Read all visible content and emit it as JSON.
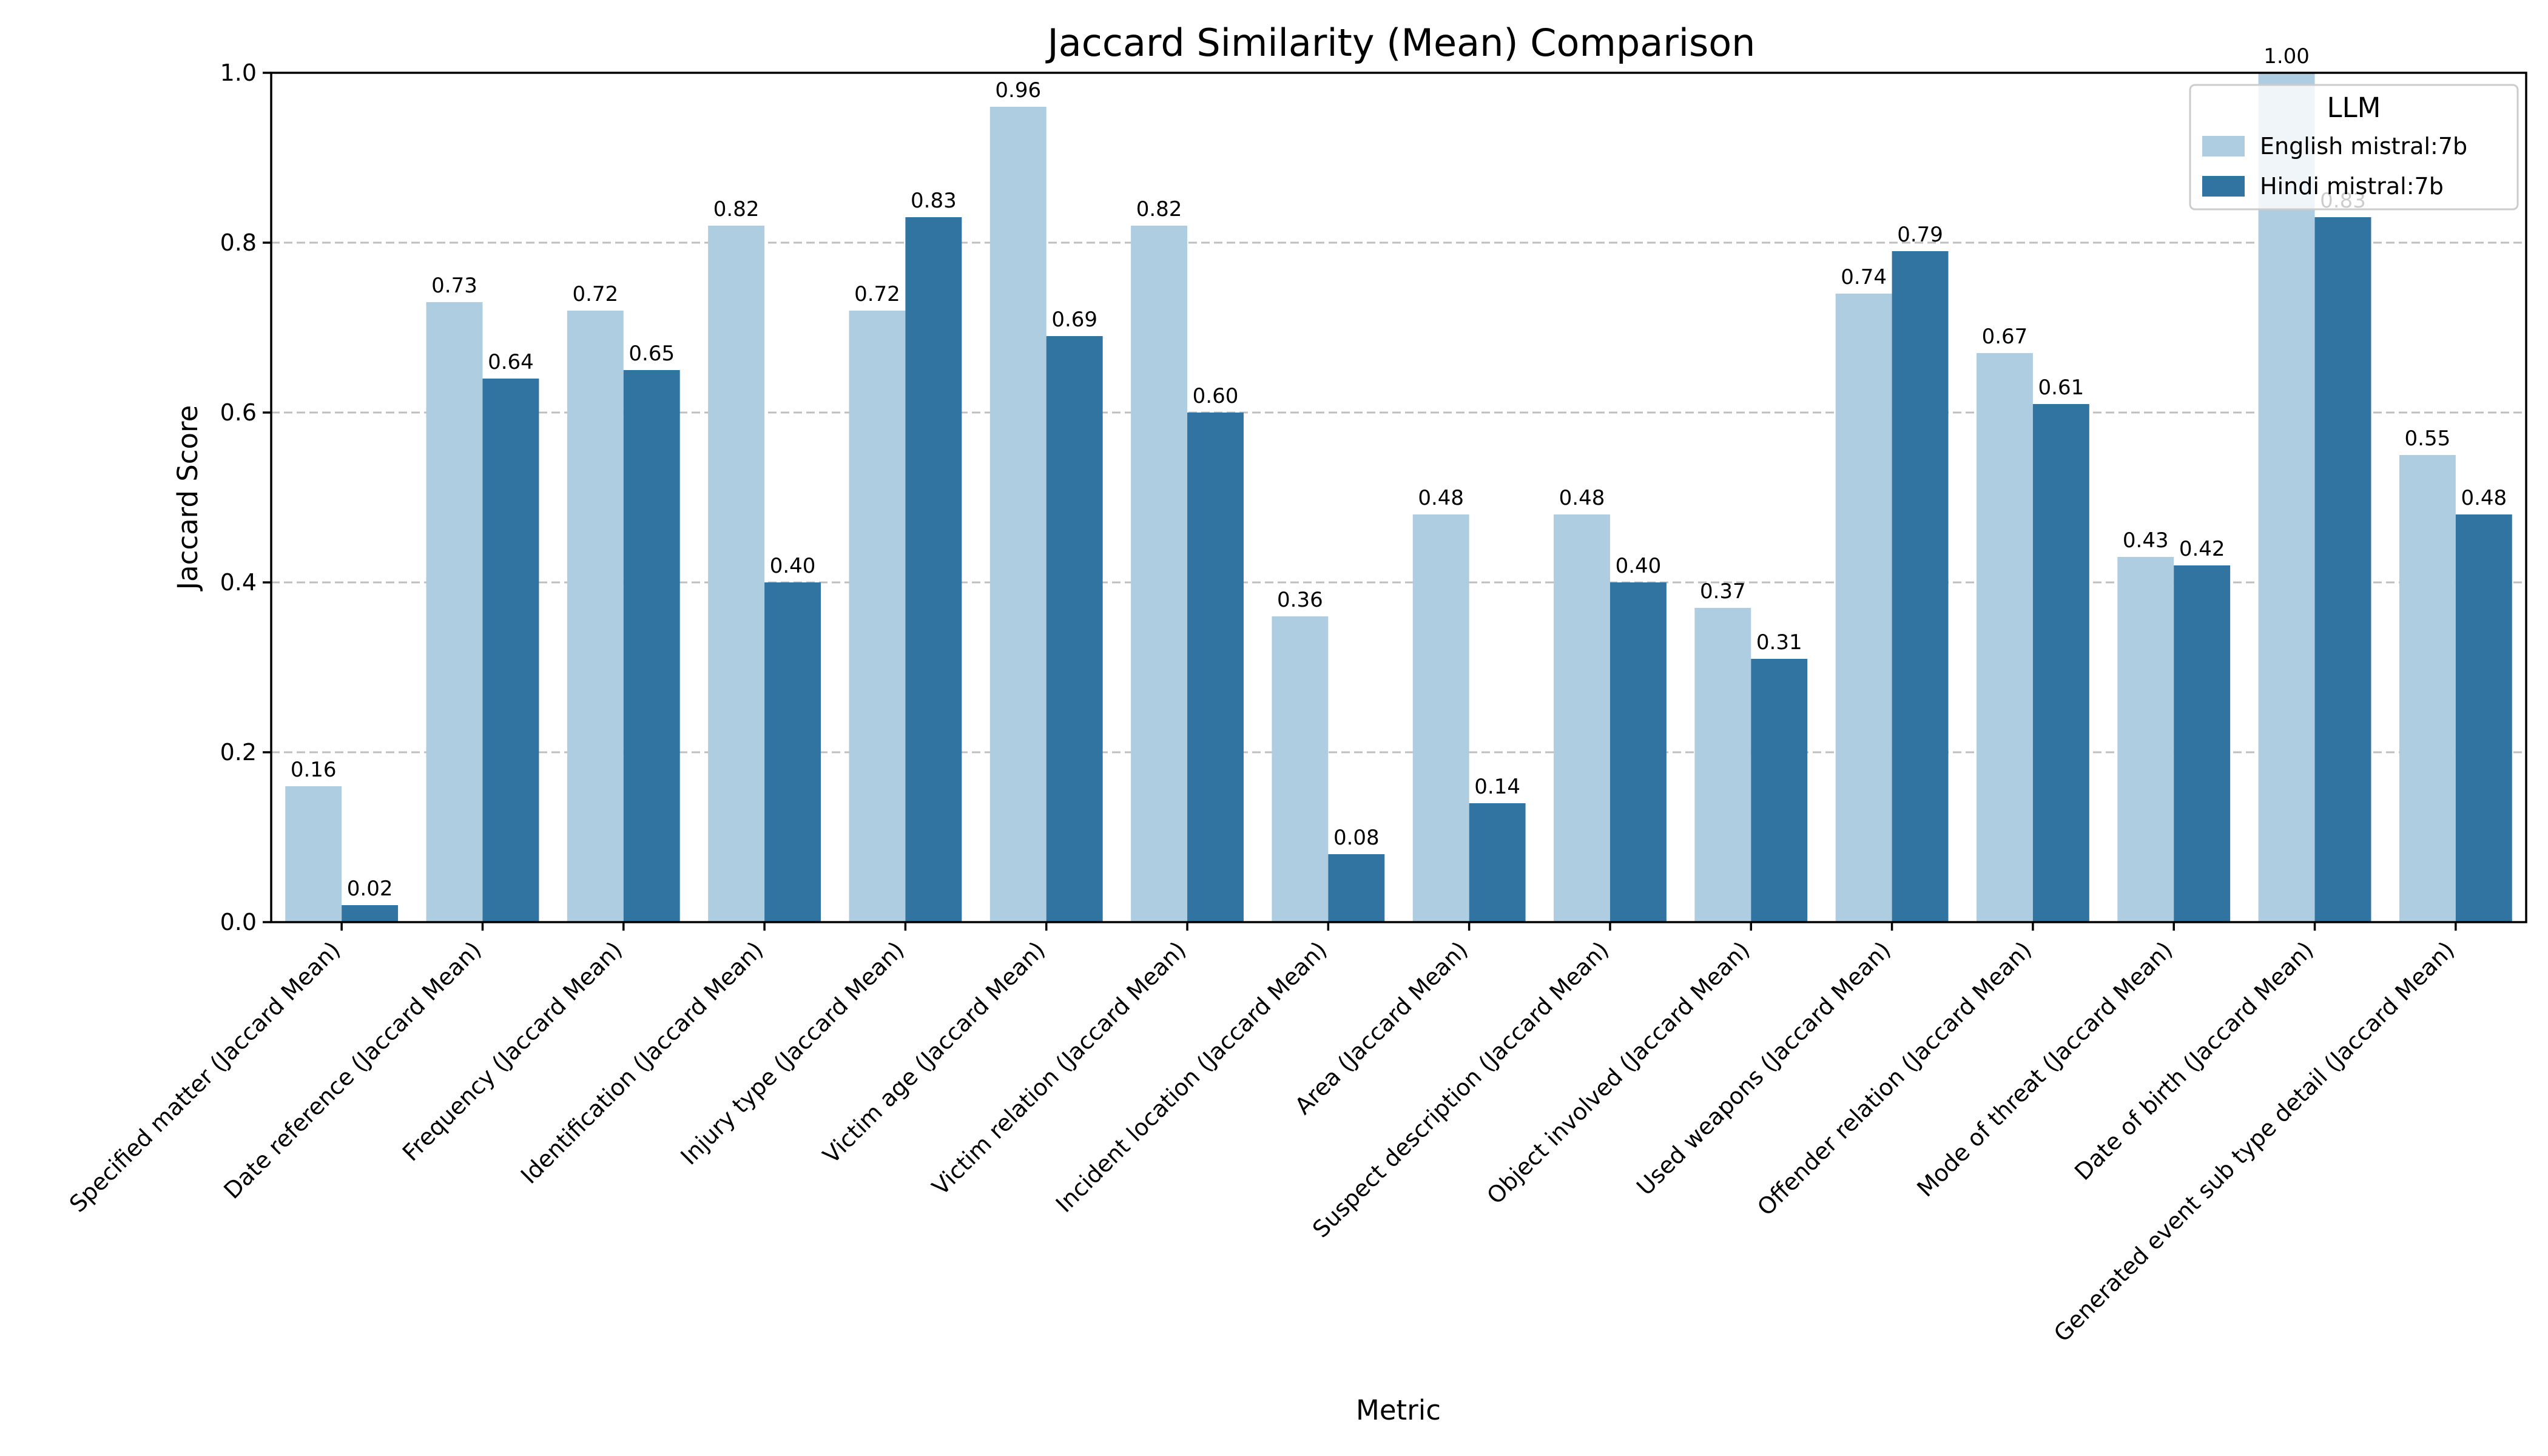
{
  "chart_data": {
    "type": "bar",
    "title": "Jaccard Similarity (Mean) Comparison",
    "xlabel": "Metric",
    "ylabel": "Jaccard Score",
    "ylim": [
      0,
      1.0
    ],
    "yticks": [
      "0.0",
      "0.2",
      "0.4",
      "0.6",
      "0.8",
      "1.0"
    ],
    "grid": "y-dashed",
    "legend": {
      "title": "LLM",
      "placement": "top-right"
    },
    "categories": [
      "Specified matter (Jaccard Mean)",
      "Date reference (Jaccard Mean)",
      "Frequency (Jaccard Mean)",
      "Identification (Jaccard Mean)",
      "Injury type (Jaccard Mean)",
      "Victim age (Jaccard Mean)",
      "Victim relation (Jaccard Mean)",
      "Incident location (Jaccard Mean)",
      "Area (Jaccard Mean)",
      "Suspect description (Jaccard Mean)",
      "Object involved (Jaccard Mean)",
      "Used weapons (Jaccard Mean)",
      "Offender relation (Jaccard Mean)",
      "Mode of threat (Jaccard Mean)",
      "Date of birth (Jaccard Mean)",
      "Generated event sub type detail (Jaccard Mean)"
    ],
    "series": [
      {
        "name": "English mistral:7b",
        "color": "#aecde1",
        "values": [
          0.16,
          0.73,
          0.72,
          0.82,
          0.72,
          0.96,
          0.82,
          0.36,
          0.48,
          0.48,
          0.37,
          0.74,
          0.67,
          0.43,
          1.0,
          0.55
        ]
      },
      {
        "name": "Hindi mistral:7b",
        "color": "#3274a1",
        "values": [
          0.02,
          0.64,
          0.65,
          0.4,
          0.83,
          0.69,
          0.6,
          0.08,
          0.14,
          0.4,
          0.31,
          0.79,
          0.61,
          0.42,
          0.83,
          0.48
        ]
      }
    ]
  }
}
